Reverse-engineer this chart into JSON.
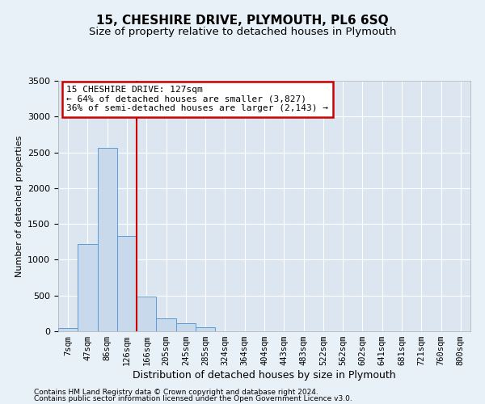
{
  "title": "15, CHESHIRE DRIVE, PLYMOUTH, PL6 6SQ",
  "subtitle": "Size of property relative to detached houses in Plymouth",
  "xlabel": "Distribution of detached houses by size in Plymouth",
  "ylabel": "Number of detached properties",
  "categories": [
    "7sqm",
    "47sqm",
    "86sqm",
    "126sqm",
    "166sqm",
    "205sqm",
    "245sqm",
    "285sqm",
    "324sqm",
    "364sqm",
    "404sqm",
    "443sqm",
    "483sqm",
    "522sqm",
    "562sqm",
    "602sqm",
    "641sqm",
    "681sqm",
    "721sqm",
    "760sqm",
    "800sqm"
  ],
  "values": [
    50,
    1220,
    2560,
    1330,
    490,
    185,
    110,
    55,
    0,
    0,
    0,
    0,
    0,
    0,
    0,
    0,
    0,
    0,
    0,
    0,
    0
  ],
  "bar_color": "#c9d9ec",
  "bar_edge_color": "#5b9bd5",
  "annotation_text": "15 CHESHIRE DRIVE: 127sqm\n← 64% of detached houses are smaller (3,827)\n36% of semi-detached houses are larger (2,143) →",
  "annotation_box_color": "#ffffff",
  "annotation_box_edge_color": "#cc0000",
  "ylim": [
    0,
    3500
  ],
  "yticks": [
    0,
    500,
    1000,
    1500,
    2000,
    2500,
    3000,
    3500
  ],
  "vline_color": "#cc0000",
  "vline_x": 3.5,
  "bg_color": "#e8f0f8",
  "plot_bg_color": "#dce6f1",
  "footer_line1": "Contains HM Land Registry data © Crown copyright and database right 2024.",
  "footer_line2": "Contains public sector information licensed under the Open Government Licence v3.0.",
  "title_fontsize": 11,
  "subtitle_fontsize": 9.5,
  "ylabel_fontsize": 8,
  "xlabel_fontsize": 9,
  "tick_fontsize": 8,
  "xtick_fontsize": 7.5,
  "annotation_fontsize": 8,
  "footer_fontsize": 6.5
}
